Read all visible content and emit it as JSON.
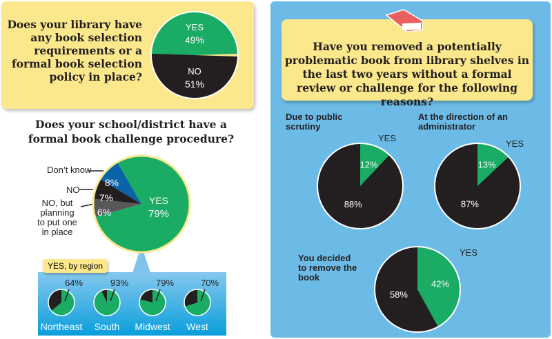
{
  "colors": {
    "yes": "#1aab64",
    "no": "#231f20",
    "dont_know": "#0b64a8",
    "no_planning": "#58585a",
    "yellow": "#fbe88c",
    "panel_blue": "#6cbbe6"
  },
  "chart_data": [
    {
      "type": "pie",
      "id": "selection_policy",
      "title": "Does your library have any book selection requirements or a formal book selection policy in place?",
      "slices": [
        {
          "label": "YES",
          "value": 49,
          "display": "49%"
        },
        {
          "label": "NO",
          "value": 51,
          "display": "51%"
        }
      ]
    },
    {
      "type": "pie",
      "id": "challenge_procedure",
      "title": "Does your school/district have a formal book challenge procedure?",
      "slices": [
        {
          "label": "YES",
          "value": 79,
          "display": "79%"
        },
        {
          "label": "NO, but planning to put one in place",
          "value": 6,
          "display": "6%"
        },
        {
          "label": "NO",
          "value": 7,
          "display": "7%"
        },
        {
          "label": "Don’t know",
          "value": 8,
          "display": "8%"
        }
      ]
    },
    {
      "type": "pie",
      "id": "yes_by_region",
      "title": "YES, by region",
      "regions": [
        {
          "label": "Northeast",
          "value": 64,
          "display": "64%"
        },
        {
          "label": "South",
          "value": 93,
          "display": "93%"
        },
        {
          "label": "Midwest",
          "value": 79,
          "display": "79%"
        },
        {
          "label": "West",
          "value": 70,
          "display": "70%"
        }
      ]
    },
    {
      "type": "pie",
      "id": "removed_reasons",
      "title": "Have you removed a potentially problematic book from library shelves in the last two years without a formal review or challenge for the following reasons?",
      "reasons": [
        {
          "label": "Due to public scrutiny",
          "yes_label": "YES",
          "yes": 12,
          "yes_display": "12%",
          "no_display": "88%"
        },
        {
          "label": "At the direction of an administrator",
          "yes_label": "YES",
          "yes": 13,
          "yes_display": "13%",
          "no_display": "87%"
        },
        {
          "label": "You decided to remove the book",
          "yes_label": "YES",
          "yes": 42,
          "yes_display": "42%",
          "no_display": "58%"
        }
      ]
    }
  ],
  "icons": {
    "book": "book-icon"
  }
}
